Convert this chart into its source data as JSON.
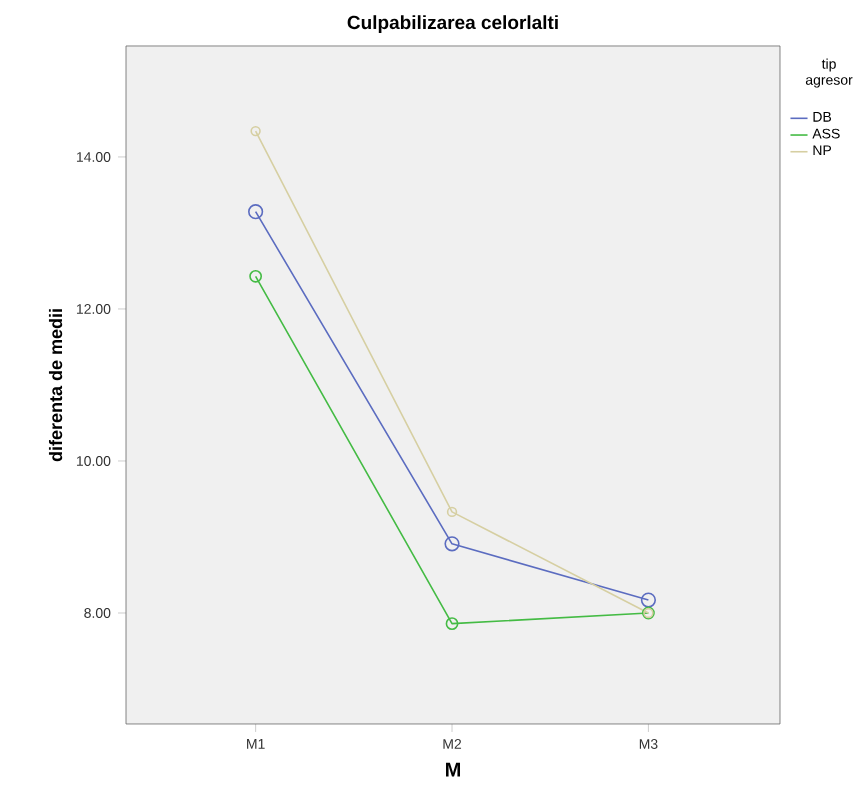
{
  "chart_data": {
    "type": "line",
    "title": "Culpabilizarea celorlalti",
    "xlabel": "M",
    "ylabel": "diferenta de medii",
    "legend_title": "tip agresor",
    "categories": [
      "M1",
      "M2",
      "M3"
    ],
    "series": [
      {
        "name": "DB",
        "color": "#5b6cc0",
        "values": [
          13.28,
          8.91,
          8.17
        ]
      },
      {
        "name": "ASS",
        "color": "#44bb44",
        "values": [
          12.43,
          7.86,
          8.0
        ]
      },
      {
        "name": "NP",
        "color": "#d6cfa2",
        "values": [
          14.34,
          9.33,
          8.0
        ]
      }
    ],
    "ylim": [
      6.54,
      15.46
    ],
    "yticks": [
      {
        "value": 8,
        "label": "8.00"
      },
      {
        "value": 10,
        "label": "10.00"
      },
      {
        "value": 12,
        "label": "12.00"
      },
      {
        "value": 14,
        "label": "14.00"
      }
    ],
    "grid": false,
    "legend": "top right",
    "marker": "circle",
    "line_style": "solid"
  }
}
